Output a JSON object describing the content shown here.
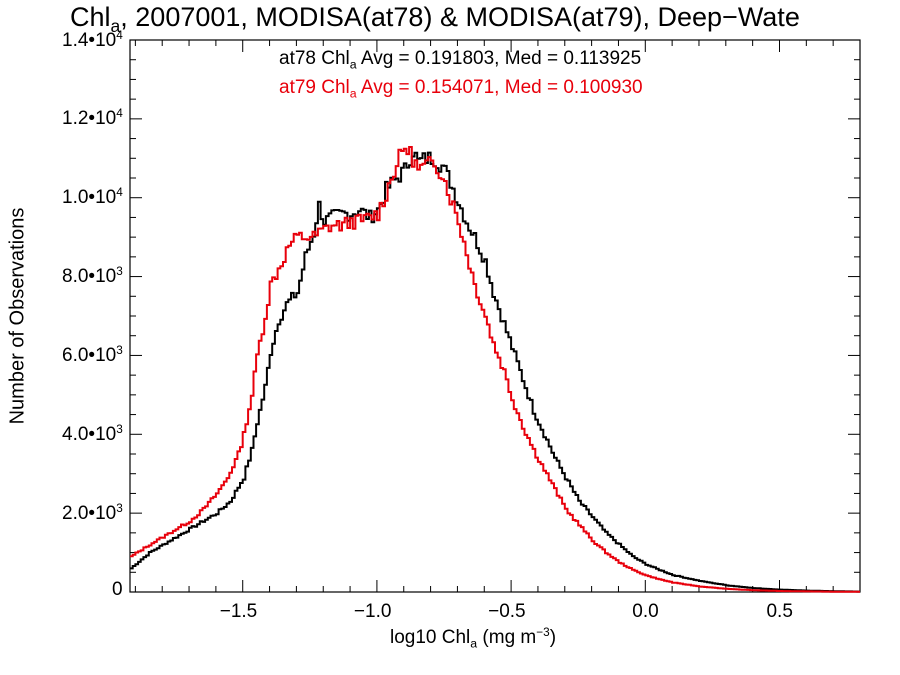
{
  "title": {
    "prefix": "Chl",
    "sub": "a",
    "rest": ", 2007001, MODISA(at78) & MODISA(at79), Deep−Wate"
  },
  "legend": [
    {
      "pre": "at78 Chl",
      "sub": "a",
      "post": " Avg = 0.191803, Med = 0.113925",
      "color": "#000000"
    },
    {
      "pre": "at79 Chl",
      "sub": "a",
      "post": " Avg = 0.154071, Med = 0.100930",
      "color": "#e8000b"
    }
  ],
  "axes": {
    "xlabel": {
      "pre": "log10 Chl",
      "sub": "a",
      "unit_pre": " (mg m",
      "unit_sup": "−3",
      "unit_post": ")"
    },
    "ylabel": "Number of Observations",
    "xticks": [
      "−1.5",
      "−1.0",
      "−0.5",
      "0.0",
      "0.5"
    ],
    "yticks": [
      {
        "mant": "0",
        "exp": ""
      },
      {
        "mant": "2.0•10",
        "exp": "3"
      },
      {
        "mant": "4.0•10",
        "exp": "3"
      },
      {
        "mant": "6.0•10",
        "exp": "3"
      },
      {
        "mant": "8.0•10",
        "exp": "3"
      },
      {
        "mant": "1.0•10",
        "exp": "4"
      },
      {
        "mant": "1.2•10",
        "exp": "4"
      },
      {
        "mant": "1.4•10",
        "exp": "4"
      }
    ]
  },
  "chart_data": {
    "type": "line",
    "step": true,
    "xlim": [
      -1.92,
      0.8
    ],
    "ylim": [
      0,
      14000
    ],
    "x_tick_values": [
      -1.5,
      -1.0,
      -0.5,
      0.0,
      0.5
    ],
    "y_tick_values": [
      0,
      2000,
      4000,
      6000,
      8000,
      10000,
      12000,
      14000
    ],
    "grid": false,
    "series": [
      {
        "name": "at78",
        "color": "#000000",
        "points": [
          [
            -1.92,
            600
          ],
          [
            -1.85,
            1000
          ],
          [
            -1.8,
            1200
          ],
          [
            -1.75,
            1400
          ],
          [
            -1.7,
            1600
          ],
          [
            -1.65,
            1800
          ],
          [
            -1.6,
            2000
          ],
          [
            -1.55,
            2300
          ],
          [
            -1.5,
            2900
          ],
          [
            -1.47,
            3600
          ],
          [
            -1.45,
            4300
          ],
          [
            -1.42,
            5200
          ],
          [
            -1.4,
            6100
          ],
          [
            -1.37,
            6900
          ],
          [
            -1.34,
            7300
          ],
          [
            -1.3,
            7600
          ],
          [
            -1.27,
            8500
          ],
          [
            -1.24,
            9100
          ],
          [
            -1.22,
            9800
          ],
          [
            -1.2,
            9400
          ],
          [
            -1.17,
            9500
          ],
          [
            -1.13,
            9600
          ],
          [
            -1.1,
            9600
          ],
          [
            -1.07,
            9700
          ],
          [
            -1.03,
            9500
          ],
          [
            -1.0,
            9700
          ],
          [
            -0.97,
            10200
          ],
          [
            -0.93,
            10500
          ],
          [
            -0.9,
            10700
          ],
          [
            -0.87,
            11200
          ],
          [
            -0.85,
            10900
          ],
          [
            -0.82,
            11000
          ],
          [
            -0.79,
            11000
          ],
          [
            -0.76,
            10800
          ],
          [
            -0.73,
            10400
          ],
          [
            -0.7,
            9900
          ],
          [
            -0.67,
            9400
          ],
          [
            -0.64,
            9000
          ],
          [
            -0.6,
            8400
          ],
          [
            -0.57,
            7600
          ],
          [
            -0.53,
            6800
          ],
          [
            -0.5,
            6200
          ],
          [
            -0.46,
            5400
          ],
          [
            -0.42,
            4600
          ],
          [
            -0.38,
            4000
          ],
          [
            -0.34,
            3400
          ],
          [
            -0.3,
            2900
          ],
          [
            -0.25,
            2300
          ],
          [
            -0.2,
            1900
          ],
          [
            -0.15,
            1500
          ],
          [
            -0.1,
            1200
          ],
          [
            -0.05,
            900
          ],
          [
            0.0,
            700
          ],
          [
            0.05,
            560
          ],
          [
            0.1,
            430
          ],
          [
            0.2,
            280
          ],
          [
            0.3,
            170
          ],
          [
            0.4,
            100
          ],
          [
            0.5,
            60
          ],
          [
            0.6,
            35
          ],
          [
            0.7,
            20
          ],
          [
            0.8,
            10
          ]
        ]
      },
      {
        "name": "at79",
        "color": "#e8000b",
        "points": [
          [
            -1.92,
            900
          ],
          [
            -1.85,
            1200
          ],
          [
            -1.8,
            1400
          ],
          [
            -1.75,
            1600
          ],
          [
            -1.7,
            1800
          ],
          [
            -1.65,
            2100
          ],
          [
            -1.6,
            2500
          ],
          [
            -1.56,
            2900
          ],
          [
            -1.52,
            3500
          ],
          [
            -1.5,
            4000
          ],
          [
            -1.47,
            5000
          ],
          [
            -1.45,
            6000
          ],
          [
            -1.42,
            7000
          ],
          [
            -1.4,
            7800
          ],
          [
            -1.37,
            8200
          ],
          [
            -1.33,
            8800
          ],
          [
            -1.3,
            9000
          ],
          [
            -1.27,
            9000
          ],
          [
            -1.24,
            9000
          ],
          [
            -1.2,
            9200
          ],
          [
            -1.17,
            9300
          ],
          [
            -1.13,
            9300
          ],
          [
            -1.1,
            9400
          ],
          [
            -1.07,
            9400
          ],
          [
            -1.03,
            9500
          ],
          [
            -1.0,
            9600
          ],
          [
            -0.97,
            10100
          ],
          [
            -0.94,
            10700
          ],
          [
            -0.9,
            11300
          ],
          [
            -0.87,
            11000
          ],
          [
            -0.85,
            10700
          ],
          [
            -0.82,
            10800
          ],
          [
            -0.79,
            10900
          ],
          [
            -0.76,
            10600
          ],
          [
            -0.73,
            10000
          ],
          [
            -0.7,
            9400
          ],
          [
            -0.67,
            8600
          ],
          [
            -0.64,
            7800
          ],
          [
            -0.6,
            7000
          ],
          [
            -0.57,
            6300
          ],
          [
            -0.53,
            5600
          ],
          [
            -0.5,
            4900
          ],
          [
            -0.46,
            4200
          ],
          [
            -0.42,
            3600
          ],
          [
            -0.38,
            3100
          ],
          [
            -0.34,
            2600
          ],
          [
            -0.3,
            2100
          ],
          [
            -0.25,
            1700
          ],
          [
            -0.2,
            1300
          ],
          [
            -0.15,
            1000
          ],
          [
            -0.1,
            750
          ],
          [
            -0.05,
            560
          ],
          [
            0.0,
            420
          ],
          [
            0.05,
            320
          ],
          [
            0.1,
            240
          ],
          [
            0.2,
            140
          ],
          [
            0.3,
            80
          ],
          [
            0.4,
            45
          ],
          [
            0.5,
            25
          ],
          [
            0.6,
            15
          ],
          [
            0.7,
            8
          ],
          [
            0.8,
            5
          ]
        ]
      }
    ]
  }
}
